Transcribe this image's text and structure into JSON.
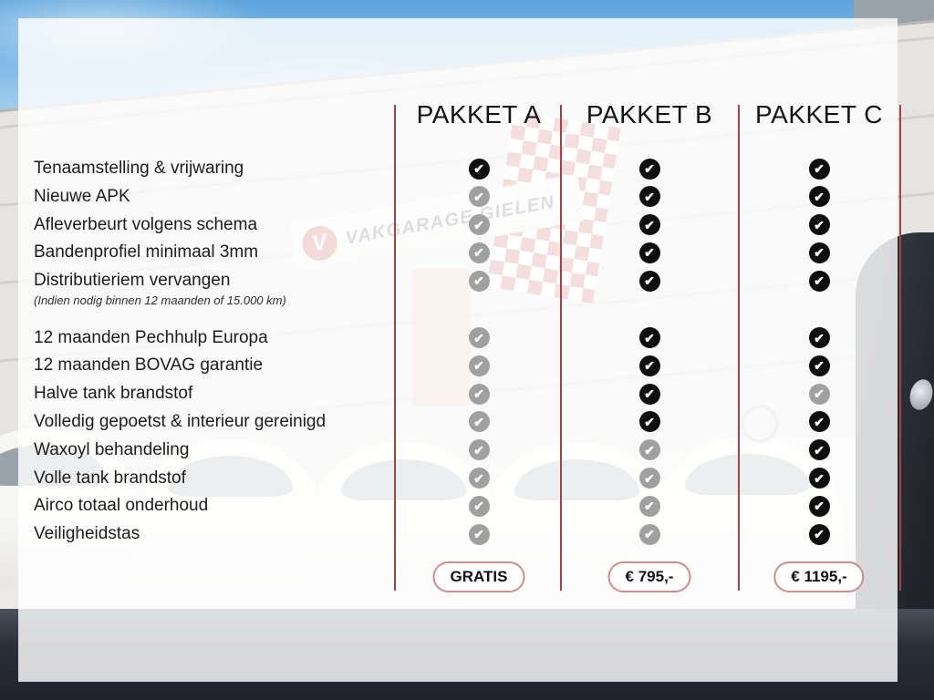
{
  "header": {
    "packages": [
      {
        "name": "PAKKET A",
        "price": "GRATIS"
      },
      {
        "name": "PAKKET B",
        "price": "€ 795,-"
      },
      {
        "name": "PAKKET C",
        "price": "€ 1195,-"
      }
    ]
  },
  "features": [
    {
      "label": "Tenaamstelling & vrijwaring",
      "included": [
        true,
        true,
        true
      ]
    },
    {
      "label": "Nieuwe APK",
      "included": [
        false,
        true,
        true
      ]
    },
    {
      "label": "Afleverbeurt volgens schema",
      "included": [
        false,
        true,
        true
      ]
    },
    {
      "label": "Bandenprofiel minimaal 3mm",
      "included": [
        false,
        true,
        true
      ]
    },
    {
      "label": "Distributieriem vervangen",
      "note": "(Indien nodig binnen 12 maanden of 15.000 km)",
      "included": [
        false,
        true,
        true
      ]
    },
    {
      "label": "12 maanden Pechhulp Europa",
      "included": [
        false,
        true,
        true
      ]
    },
    {
      "label": "12 maanden BOVAG garantie",
      "included": [
        false,
        true,
        true
      ]
    },
    {
      "label": "Halve tank brandstof",
      "included": [
        false,
        true,
        false
      ]
    },
    {
      "label": "Volledig gepoetst & interieur gereinigd",
      "included": [
        false,
        true,
        true
      ]
    },
    {
      "label": "Waxoyl behandeling",
      "included": [
        false,
        false,
        true
      ]
    },
    {
      "label": "Volle tank brandstof",
      "included": [
        false,
        false,
        true
      ]
    },
    {
      "label": "Airco totaal onderhoud",
      "included": [
        false,
        false,
        true
      ]
    },
    {
      "label": "Veiligheidstas",
      "included": [
        false,
        false,
        true
      ]
    }
  ],
  "background": {
    "sign_text": "VAKGARAGE GIELEN",
    "sign_logo_letter": "V"
  },
  "icons": {
    "included": "check-circle-black",
    "excluded": "check-circle-gray",
    "check_glyph": "✔"
  },
  "colors": {
    "divider": "#a34343",
    "check_included": "#0e0e0e",
    "check_excluded": "#a0a0a0",
    "button_border": "#c9908d",
    "label_text": "#1c1c1c"
  }
}
